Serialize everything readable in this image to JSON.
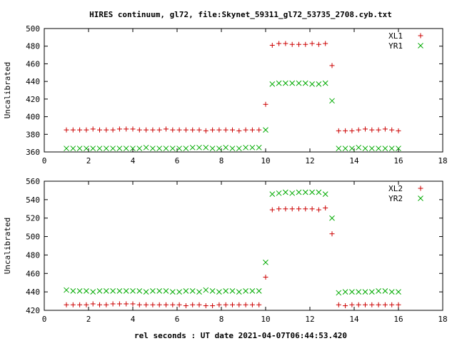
{
  "title": "HIRES continuum, gl72, file:Skynet_59311_gl72_53735_2708.cyb.txt",
  "xlabel": "rel seconds : UT date 2021-04-07T06:44:53.420",
  "chart_data": [
    {
      "type": "scatter",
      "ylabel": "Uncalibrated",
      "xlim": [
        0,
        18
      ],
      "ylim": [
        360,
        500
      ],
      "xticks": [
        0,
        2,
        4,
        6,
        8,
        10,
        12,
        14,
        16,
        18
      ],
      "yticks": [
        360,
        380,
        400,
        420,
        440,
        460,
        480,
        500
      ],
      "grid": false,
      "legend_position": "top-right",
      "series": [
        {
          "name": "XL1",
          "marker": "plus",
          "color": "#cc0000",
          "points": [
            [
              1.0,
              385
            ],
            [
              1.3,
              385
            ],
            [
              1.6,
              385
            ],
            [
              1.9,
              385
            ],
            [
              2.2,
              386
            ],
            [
              2.5,
              385
            ],
            [
              2.8,
              385
            ],
            [
              3.1,
              385
            ],
            [
              3.4,
              386
            ],
            [
              3.7,
              386
            ],
            [
              4.0,
              386
            ],
            [
              4.3,
              385
            ],
            [
              4.6,
              385
            ],
            [
              4.9,
              385
            ],
            [
              5.2,
              385
            ],
            [
              5.5,
              386
            ],
            [
              5.8,
              385
            ],
            [
              6.1,
              385
            ],
            [
              6.4,
              385
            ],
            [
              6.7,
              385
            ],
            [
              7.0,
              385
            ],
            [
              7.3,
              384
            ],
            [
              7.6,
              385
            ],
            [
              7.9,
              385
            ],
            [
              8.2,
              385
            ],
            [
              8.5,
              385
            ],
            [
              8.8,
              384
            ],
            [
              9.1,
              385
            ],
            [
              9.4,
              385
            ],
            [
              9.7,
              385
            ],
            [
              10.0,
              414
            ],
            [
              10.3,
              481
            ],
            [
              10.6,
              483
            ],
            [
              10.9,
              483
            ],
            [
              11.2,
              482
            ],
            [
              11.5,
              482
            ],
            [
              11.8,
              482
            ],
            [
              12.1,
              483
            ],
            [
              12.4,
              482
            ],
            [
              12.7,
              483
            ],
            [
              13.0,
              458
            ],
            [
              13.3,
              384
            ],
            [
              13.6,
              384
            ],
            [
              13.9,
              384
            ],
            [
              14.2,
              385
            ],
            [
              14.5,
              386
            ],
            [
              14.8,
              385
            ],
            [
              15.1,
              385
            ],
            [
              15.4,
              386
            ],
            [
              15.7,
              385
            ],
            [
              16.0,
              384
            ]
          ]
        },
        {
          "name": "YR1",
          "marker": "cross",
          "color": "#00aa00",
          "points": [
            [
              1.0,
              364
            ],
            [
              1.3,
              364
            ],
            [
              1.6,
              364
            ],
            [
              1.9,
              364
            ],
            [
              2.2,
              364
            ],
            [
              2.5,
              364
            ],
            [
              2.8,
              364
            ],
            [
              3.1,
              364
            ],
            [
              3.4,
              364
            ],
            [
              3.7,
              364
            ],
            [
              4.0,
              364
            ],
            [
              4.3,
              364
            ],
            [
              4.6,
              365
            ],
            [
              4.9,
              364
            ],
            [
              5.2,
              364
            ],
            [
              5.5,
              364
            ],
            [
              5.8,
              364
            ],
            [
              6.1,
              364
            ],
            [
              6.4,
              364
            ],
            [
              6.7,
              365
            ],
            [
              7.0,
              365
            ],
            [
              7.3,
              365
            ],
            [
              7.6,
              364
            ],
            [
              7.9,
              364
            ],
            [
              8.2,
              365
            ],
            [
              8.5,
              364
            ],
            [
              8.8,
              364
            ],
            [
              9.1,
              365
            ],
            [
              9.4,
              365
            ],
            [
              9.7,
              365
            ],
            [
              10.0,
              385
            ],
            [
              10.3,
              437
            ],
            [
              10.6,
              438
            ],
            [
              10.9,
              438
            ],
            [
              11.2,
              438
            ],
            [
              11.5,
              438
            ],
            [
              11.8,
              438
            ],
            [
              12.1,
              437
            ],
            [
              12.4,
              437
            ],
            [
              12.7,
              438
            ],
            [
              13.0,
              418
            ],
            [
              13.3,
              364
            ],
            [
              13.6,
              364
            ],
            [
              13.9,
              364
            ],
            [
              14.2,
              365
            ],
            [
              14.5,
              364
            ],
            [
              14.8,
              364
            ],
            [
              15.1,
              364
            ],
            [
              15.4,
              364
            ],
            [
              15.7,
              364
            ],
            [
              16.0,
              364
            ]
          ]
        }
      ]
    },
    {
      "type": "scatter",
      "ylabel": "Uncalibrated",
      "xlim": [
        0,
        18
      ],
      "ylim": [
        420,
        560
      ],
      "xticks": [
        0,
        2,
        4,
        6,
        8,
        10,
        12,
        14,
        16,
        18
      ],
      "yticks": [
        420,
        440,
        460,
        480,
        500,
        520,
        540,
        560
      ],
      "grid": false,
      "legend_position": "top-right",
      "series": [
        {
          "name": "XL2",
          "marker": "plus",
          "color": "#cc0000",
          "points": [
            [
              1.0,
              426
            ],
            [
              1.3,
              426
            ],
            [
              1.6,
              426
            ],
            [
              1.9,
              426
            ],
            [
              2.2,
              427
            ],
            [
              2.5,
              426
            ],
            [
              2.8,
              426
            ],
            [
              3.1,
              427
            ],
            [
              3.4,
              427
            ],
            [
              3.7,
              427
            ],
            [
              4.0,
              427
            ],
            [
              4.3,
              426
            ],
            [
              4.6,
              426
            ],
            [
              4.9,
              426
            ],
            [
              5.2,
              426
            ],
            [
              5.5,
              426
            ],
            [
              5.8,
              426
            ],
            [
              6.1,
              426
            ],
            [
              6.4,
              425
            ],
            [
              6.7,
              426
            ],
            [
              7.0,
              426
            ],
            [
              7.3,
              425
            ],
            [
              7.6,
              425
            ],
            [
              7.9,
              426
            ],
            [
              8.2,
              426
            ],
            [
              8.5,
              426
            ],
            [
              8.8,
              426
            ],
            [
              9.1,
              426
            ],
            [
              9.4,
              426
            ],
            [
              9.7,
              426
            ],
            [
              10.0,
              456
            ],
            [
              10.3,
              529
            ],
            [
              10.6,
              530
            ],
            [
              10.9,
              530
            ],
            [
              11.2,
              530
            ],
            [
              11.5,
              530
            ],
            [
              11.8,
              530
            ],
            [
              12.1,
              530
            ],
            [
              12.4,
              529
            ],
            [
              12.7,
              531
            ],
            [
              13.0,
              503
            ],
            [
              13.3,
              426
            ],
            [
              13.6,
              425
            ],
            [
              13.9,
              426
            ],
            [
              14.2,
              426
            ],
            [
              14.5,
              426
            ],
            [
              14.8,
              426
            ],
            [
              15.1,
              426
            ],
            [
              15.4,
              426
            ],
            [
              15.7,
              426
            ],
            [
              16.0,
              426
            ]
          ]
        },
        {
          "name": "YR2",
          "marker": "cross",
          "color": "#00aa00",
          "points": [
            [
              1.0,
              442
            ],
            [
              1.3,
              441
            ],
            [
              1.6,
              441
            ],
            [
              1.9,
              441
            ],
            [
              2.2,
              440
            ],
            [
              2.5,
              441
            ],
            [
              2.8,
              441
            ],
            [
              3.1,
              441
            ],
            [
              3.4,
              441
            ],
            [
              3.7,
              441
            ],
            [
              4.0,
              441
            ],
            [
              4.3,
              441
            ],
            [
              4.6,
              440
            ],
            [
              4.9,
              441
            ],
            [
              5.2,
              441
            ],
            [
              5.5,
              441
            ],
            [
              5.8,
              440
            ],
            [
              6.1,
              440
            ],
            [
              6.4,
              441
            ],
            [
              6.7,
              441
            ],
            [
              7.0,
              440
            ],
            [
              7.3,
              442
            ],
            [
              7.6,
              441
            ],
            [
              7.9,
              440
            ],
            [
              8.2,
              441
            ],
            [
              8.5,
              441
            ],
            [
              8.8,
              440
            ],
            [
              9.1,
              441
            ],
            [
              9.4,
              441
            ],
            [
              9.7,
              441
            ],
            [
              10.0,
              472
            ],
            [
              10.3,
              546
            ],
            [
              10.6,
              547
            ],
            [
              10.9,
              548
            ],
            [
              11.2,
              547
            ],
            [
              11.5,
              548
            ],
            [
              11.8,
              548
            ],
            [
              12.1,
              548
            ],
            [
              12.4,
              548
            ],
            [
              12.7,
              546
            ],
            [
              13.0,
              520
            ],
            [
              13.3,
              439
            ],
            [
              13.6,
              440
            ],
            [
              13.9,
              440
            ],
            [
              14.2,
              440
            ],
            [
              14.5,
              440
            ],
            [
              14.8,
              440
            ],
            [
              15.1,
              441
            ],
            [
              15.4,
              441
            ],
            [
              15.7,
              440
            ],
            [
              16.0,
              440
            ]
          ]
        }
      ]
    }
  ]
}
